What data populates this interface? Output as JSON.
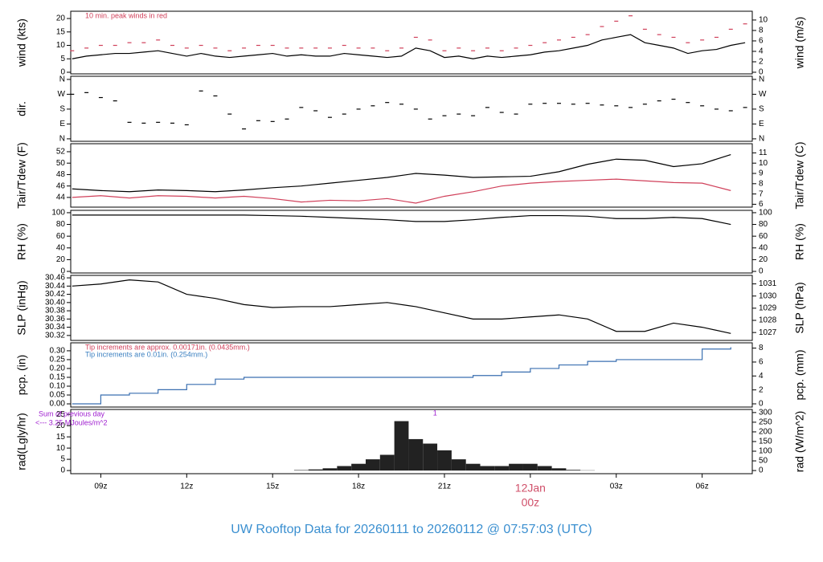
{
  "page_title": "UW Rooftop Data for 20260111  to  20260112 @ 07:57:03  (UTC)",
  "chart_data": [
    {
      "type": "line",
      "ylabel": "wind (kts)",
      "y2label": "wind (m/s)",
      "xlim": [
        7.95,
        31.75
      ],
      "ylim": [
        -0.6,
        22.7
      ],
      "yticks": [
        0,
        5,
        10,
        15,
        20
      ],
      "y2lim": [
        -0.31,
        11.68
      ],
      "y2ticks": [
        0,
        2,
        4,
        6,
        8,
        10
      ],
      "annotations": [
        {
          "text": "10 min. peak winds in red",
          "color": "#d0405a"
        }
      ],
      "x": [
        8,
        8.5,
        9,
        9.5,
        10,
        10.5,
        11,
        11.5,
        12,
        12.5,
        13,
        13.5,
        14,
        14.5,
        15,
        15.5,
        16,
        16.5,
        17,
        17.5,
        18,
        18.5,
        19,
        19.5,
        20,
        20.5,
        21,
        21.5,
        22,
        22.5,
        23,
        23.5,
        24,
        24.5,
        25,
        25.5,
        26,
        26.5,
        27,
        27.5,
        28,
        28.5,
        29,
        29.5,
        30,
        30.5,
        31,
        31.5
      ],
      "series": [
        {
          "name": "wind",
          "color": "#000000",
          "mark": "line",
          "values": [
            5,
            6,
            6.5,
            7,
            7,
            7.5,
            8,
            7,
            6,
            7,
            6,
            5.5,
            6,
            6.5,
            7,
            6,
            6.5,
            6,
            6,
            7,
            6.5,
            6,
            5.5,
            6,
            9,
            8,
            5.5,
            6,
            5,
            6,
            5.5,
            6,
            6.5,
            7.5,
            8,
            9,
            10,
            12,
            13,
            14,
            11,
            10,
            9,
            7,
            8,
            8.5,
            10,
            11
          ]
        },
        {
          "name": "peak",
          "color": "#d0405a",
          "mark": "dash",
          "values": [
            8,
            9,
            10,
            10,
            11,
            11,
            12,
            10,
            9,
            10,
            9,
            8,
            9,
            10,
            10,
            9,
            9,
            9,
            9,
            10,
            9,
            9,
            8,
            9,
            13,
            12,
            8,
            9,
            8,
            9,
            8,
            9,
            10,
            11,
            12,
            13,
            14,
            17,
            19,
            21,
            16,
            14,
            13,
            11,
            12,
            13,
            16,
            18
          ]
        }
      ]
    },
    {
      "type": "scatter",
      "ylabel": "dir.",
      "xlim": [
        7.95,
        31.75
      ],
      "ylim": [
        -15,
        379
      ],
      "yticks": [
        {
          "value": 0,
          "label": "N"
        },
        {
          "value": 90,
          "label": "E"
        },
        {
          "value": 180,
          "label": "S"
        },
        {
          "value": 270,
          "label": "W"
        },
        {
          "value": 360,
          "label": "N"
        }
      ],
      "x": [
        8,
        8.5,
        9,
        9.5,
        10,
        10.5,
        11,
        11.5,
        12,
        12.5,
        13,
        13.5,
        14,
        14.5,
        15,
        15.5,
        16,
        16.5,
        17,
        17.5,
        18,
        18.5,
        19,
        19.5,
        20,
        20.5,
        21,
        21.5,
        22,
        22.5,
        23,
        23.5,
        24,
        24.5,
        25,
        25.5,
        26,
        26.5,
        27,
        27.5,
        28,
        28.5,
        29,
        29.5,
        30,
        30.5,
        31,
        31.5
      ],
      "series": [
        {
          "name": "dir",
          "color": "#000000",
          "mark": "dash",
          "values": [
            270,
            280,
            250,
            230,
            100,
            95,
            100,
            95,
            85,
            290,
            260,
            150,
            60,
            110,
            105,
            120,
            190,
            170,
            130,
            150,
            180,
            200,
            220,
            210,
            180,
            120,
            140,
            150,
            140,
            190,
            160,
            150,
            210,
            215,
            215,
            210,
            215,
            205,
            200,
            190,
            210,
            230,
            240,
            220,
            200,
            180,
            170,
            190
          ]
        }
      ]
    },
    {
      "type": "line",
      "ylabel": "Tair/Tdew (F)",
      "y2label": "Tair/Tdew (C)",
      "xlim": [
        7.95,
        31.75
      ],
      "ylim": [
        42.3,
        53.4
      ],
      "yticks": [
        44,
        46,
        48,
        50,
        52
      ],
      "y2lim": [
        5.72,
        11.89
      ],
      "y2ticks": [
        6,
        7,
        8,
        9,
        10,
        11
      ],
      "x": [
        8,
        9,
        10,
        11,
        12,
        13,
        14,
        15,
        16,
        17,
        18,
        19,
        20,
        21,
        22,
        23,
        24,
        25,
        26,
        27,
        28,
        29,
        30,
        31
      ],
      "series": [
        {
          "name": "Tair",
          "color": "#000000",
          "mark": "line",
          "values": [
            45.5,
            45.2,
            45.0,
            45.3,
            45.2,
            45.0,
            45.3,
            45.7,
            46.0,
            46.5,
            47.0,
            47.5,
            48.2,
            47.9,
            47.5,
            47.6,
            47.7,
            48.5,
            49.8,
            50.7,
            50.5,
            49.4,
            49.9,
            51.5
          ]
        },
        {
          "name": "Tdew",
          "color": "#d0405a",
          "mark": "line",
          "values": [
            44.0,
            44.3,
            43.9,
            44.3,
            44.2,
            43.9,
            44.2,
            43.8,
            43.2,
            43.5,
            43.4,
            43.8,
            43.0,
            44.2,
            45.0,
            46.0,
            46.5,
            46.8,
            47.0,
            47.2,
            46.9,
            46.6,
            46.5,
            45.2
          ]
        }
      ]
    },
    {
      "type": "line",
      "ylabel": "RH (%)",
      "y2label": "RH (%)",
      "xlim": [
        7.95,
        31.75
      ],
      "ylim": [
        -2.7,
        104
      ],
      "yticks": [
        0,
        20,
        40,
        60,
        80,
        100
      ],
      "y2lim": [
        -2.7,
        104
      ],
      "y2ticks": [
        0,
        20,
        40,
        60,
        80,
        100
      ],
      "x": [
        8,
        9,
        10,
        11,
        12,
        13,
        14,
        15,
        16,
        17,
        18,
        19,
        20,
        21,
        22,
        23,
        24,
        25,
        26,
        27,
        28,
        29,
        30,
        31
      ],
      "series": [
        {
          "name": "RH",
          "color": "#000000",
          "mark": "line",
          "values": [
            96,
            96,
            96,
            96,
            96,
            96,
            96,
            95,
            94,
            92,
            90,
            88,
            85,
            85,
            88,
            92,
            95,
            95,
            94,
            90,
            90,
            92,
            90,
            80
          ]
        }
      ]
    },
    {
      "type": "line",
      "ylabel": "SLP (inHg)",
      "y2label": "SLP (hPa)",
      "xlim": [
        7.95,
        31.75
      ],
      "ylim": [
        30.308,
        30.466
      ],
      "yticks": [
        30.32,
        30.34,
        30.36,
        30.38,
        {
          "value": 30.4,
          "label": "30.40"
        },
        30.42,
        30.44,
        30.46
      ],
      "y2lim": [
        1026.35,
        1031.7
      ],
      "y2ticks": [
        1027,
        1028,
        1029,
        1030,
        1031
      ],
      "x": [
        8,
        9,
        10,
        11,
        12,
        13,
        14,
        15,
        16,
        17,
        18,
        19,
        20,
        21,
        22,
        23,
        24,
        25,
        26,
        27,
        28,
        29,
        30,
        31
      ],
      "series": [
        {
          "name": "SLP",
          "color": "#000000",
          "mark": "line",
          "values": [
            30.44,
            30.445,
            30.455,
            30.45,
            30.42,
            30.41,
            30.395,
            30.388,
            30.39,
            30.39,
            30.395,
            30.4,
            30.39,
            30.375,
            30.36,
            30.36,
            30.365,
            30.37,
            30.36,
            30.33,
            30.33,
            30.35,
            30.34,
            30.325
          ]
        }
      ]
    },
    {
      "type": "step",
      "ylabel": "pcp. (in)",
      "y2label": "pcp. (mm)",
      "xlim": [
        7.95,
        31.75
      ],
      "ylim": [
        -0.018,
        0.345
      ],
      "yticks": [
        {
          "value": 0,
          "label": "0.00"
        },
        0.05,
        {
          "value": 0.1,
          "label": "0.10"
        },
        0.15,
        {
          "value": 0.2,
          "label": "0.20"
        },
        0.25,
        {
          "value": 0.3,
          "label": "0.30"
        }
      ],
      "y2lim": [
        -0.46,
        8.76
      ],
      "y2ticks": [
        0,
        2,
        4,
        6,
        8
      ],
      "annotations": [
        {
          "text": "Tip increments are approx. 0.00171in. (0.0435mm.)",
          "color": "#d0405a"
        },
        {
          "text": "Tip increments are 0.01in. (0.254mm.)",
          "color": "#3a7fc0"
        }
      ],
      "x": [
        8,
        9,
        10,
        11,
        12,
        13,
        14,
        15,
        16,
        17,
        18,
        19,
        20,
        21,
        22,
        23,
        24,
        25,
        26,
        27,
        28,
        29,
        30,
        31
      ],
      "series": [
        {
          "name": "pcp",
          "color": "#3a6fb0",
          "mark": "step",
          "values": [
            0,
            0.05,
            0.06,
            0.08,
            0.11,
            0.14,
            0.15,
            0.15,
            0.15,
            0.15,
            0.15,
            0.15,
            0.15,
            0.15,
            0.16,
            0.18,
            0.2,
            0.22,
            0.24,
            0.25,
            0.25,
            0.25,
            0.31,
            0.32
          ]
        }
      ]
    },
    {
      "type": "bar",
      "ylabel": "rad(Lgly/hr)",
      "y2label": "rad (W/m^2)",
      "xlim": [
        7.95,
        31.75
      ],
      "ylim": [
        -1.4,
        27.2
      ],
      "yticks": [
        0,
        5,
        10,
        15,
        20,
        25
      ],
      "y2lim": [
        -16.3,
        316
      ],
      "y2ticks": [
        0,
        50,
        100,
        150,
        200,
        250,
        300
      ],
      "xticks": [
        {
          "value": 9,
          "label": "09z"
        },
        {
          "value": 12,
          "label": "12z"
        },
        {
          "value": 15,
          "label": "15z"
        },
        {
          "value": 18,
          "label": "18z"
        },
        {
          "value": 21,
          "label": "21z"
        },
        {
          "value": 24,
          "label": "00z"
        },
        {
          "value": 27,
          "label": "03z"
        },
        {
          "value": 30,
          "label": "06z"
        }
      ],
      "xtick_date": {
        "value": 24,
        "label": "12Jan",
        "color": "#d0506a"
      },
      "annotations": [
        {
          "text": "Sum of previous day",
          "color": "#a020d0"
        },
        {
          "text": "<--- 3.25 MJoules/m^2",
          "color": "#a020d0"
        },
        {
          "text": "1",
          "color": "#a020d0",
          "x": 20.6
        }
      ],
      "x": [
        15.5,
        16,
        16.5,
        17,
        17.5,
        18,
        18.5,
        19,
        19.5,
        20,
        20.5,
        21,
        21.5,
        22,
        22.5,
        23,
        23.5,
        24,
        24.5,
        25,
        25.5,
        26,
        26.5,
        27
      ],
      "series": [
        {
          "name": "rad",
          "color": "#222222",
          "mark": "bar",
          "values": [
            0,
            0.2,
            0.5,
            1,
            2,
            3,
            5,
            7,
            22,
            14,
            12,
            9,
            5,
            3,
            2,
            2,
            3,
            3,
            2,
            1,
            0.3,
            0.1,
            0,
            0
          ]
        }
      ]
    }
  ]
}
